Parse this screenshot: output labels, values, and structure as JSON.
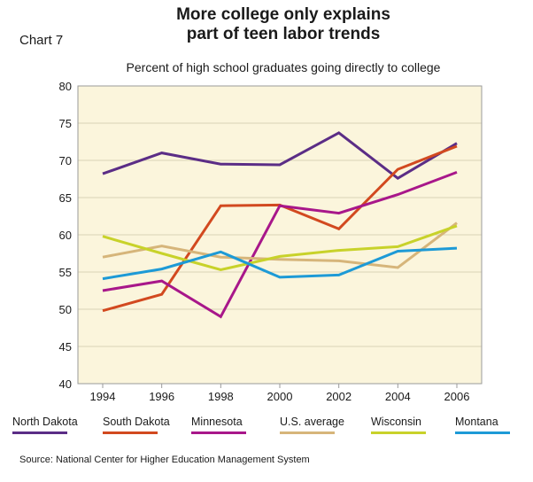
{
  "chart_label": "Chart 7",
  "chart_data": {
    "type": "line",
    "title": "More college only explains part of teen labor trends",
    "title_lines": [
      "More college only explains",
      "part of teen labor trends"
    ],
    "subtitle": "Percent of high school graduates going directly to college",
    "xlabel": "",
    "ylabel": "",
    "x": [
      1994,
      1996,
      1998,
      2000,
      2002,
      2004,
      2006
    ],
    "x_ticks": [
      "1994",
      "1996",
      "1998",
      "2000",
      "2002",
      "2004",
      "2006"
    ],
    "ylim": [
      40,
      80
    ],
    "y_ticks": [
      "40",
      "45",
      "50",
      "55",
      "60",
      "65",
      "70",
      "75",
      "80"
    ],
    "grid": "horizontal",
    "legend_position": "bottom",
    "series": [
      {
        "name": "North Dakota",
        "color": "#5b2d86",
        "values": [
          68.2,
          71.0,
          69.5,
          69.4,
          73.7,
          67.6,
          72.3
        ]
      },
      {
        "name": "South Dakota",
        "color": "#d2491f",
        "values": [
          49.8,
          52.0,
          63.9,
          64.0,
          60.8,
          68.8,
          71.9
        ]
      },
      {
        "name": "Minnesota",
        "color": "#a8178a",
        "values": [
          52.5,
          53.8,
          49.0,
          63.9,
          62.9,
          65.4,
          68.4
        ]
      },
      {
        "name": "U.S. average",
        "color": "#d6b57a",
        "values": [
          57.0,
          58.5,
          57.0,
          56.7,
          56.5,
          55.6,
          61.6
        ]
      },
      {
        "name": "Wisconsin",
        "color": "#c8d22a",
        "values": [
          59.8,
          57.5,
          55.3,
          57.1,
          57.9,
          58.4,
          61.2
        ]
      },
      {
        "name": "Montana",
        "color": "#1d9ad6",
        "values": [
          54.1,
          55.4,
          57.7,
          54.3,
          54.6,
          57.8,
          58.2
        ]
      }
    ]
  },
  "source": "Source: National Center for Higher Education Management System"
}
